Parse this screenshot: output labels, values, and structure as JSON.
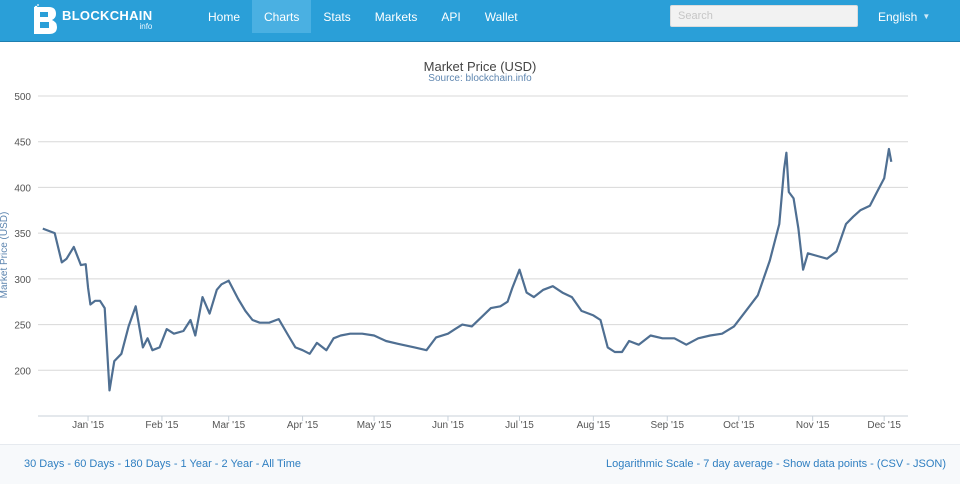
{
  "header": {
    "logo_title": "BLOCKCHAIN",
    "logo_sub": "info",
    "nav": [
      "Home",
      "Charts",
      "Stats",
      "Markets",
      "API",
      "Wallet"
    ],
    "active_nav": "Charts",
    "search_placeholder": "Search",
    "language": "English",
    "colors": {
      "bar": "#2a9fd8",
      "active": "#4ab0e2"
    }
  },
  "chart_data": {
    "type": "line",
    "title": "Market Price (USD)",
    "subtitle": "Source: blockchain.info",
    "ylabel": "Market Price (USD)",
    "xlabel": "",
    "ylim": [
      150,
      500
    ],
    "yticks": [
      200,
      250,
      300,
      350,
      400,
      450,
      500
    ],
    "x_ticks": [
      "Jan '15",
      "Feb '15",
      "Mar '15",
      "Apr '15",
      "May '15",
      "Jun '15",
      "Jul '15",
      "Aug '15",
      "Sep '15",
      "Oct '15",
      "Nov '15",
      "Dec '15"
    ],
    "grid": true,
    "line_color": "#4f6f92",
    "series": [
      {
        "x": [
          "2014-12-27",
          "2015-01-01",
          "2015-01-04",
          "2015-01-06",
          "2015-01-09",
          "2015-01-12",
          "2015-01-14",
          "2015-01-15",
          "2015-01-16",
          "2015-01-18",
          "2015-01-20",
          "2015-01-22",
          "2015-01-24",
          "2015-01-26",
          "2015-01-29",
          "2015-02-01",
          "2015-02-04",
          "2015-02-07",
          "2015-02-09",
          "2015-02-11",
          "2015-02-14",
          "2015-02-17",
          "2015-02-20",
          "2015-02-24",
          "2015-02-27",
          "2015-03-01",
          "2015-03-04",
          "2015-03-07",
          "2015-03-10",
          "2015-03-12",
          "2015-03-15",
          "2015-03-19",
          "2015-03-22",
          "2015-03-25",
          "2015-03-28",
          "2015-04-01",
          "2015-04-05",
          "2015-04-09",
          "2015-04-12",
          "2015-04-15",
          "2015-04-18",
          "2015-04-21",
          "2015-04-25",
          "2015-04-28",
          "2015-05-01",
          "2015-05-05",
          "2015-05-10",
          "2015-05-15",
          "2015-05-20",
          "2015-05-25",
          "2015-06-01",
          "2015-06-06",
          "2015-06-10",
          "2015-06-15",
          "2015-06-18",
          "2015-06-21",
          "2015-06-25",
          "2015-06-29",
          "2015-07-03",
          "2015-07-07",
          "2015-07-10",
          "2015-07-12",
          "2015-07-15",
          "2015-07-18",
          "2015-07-21",
          "2015-07-25",
          "2015-07-29",
          "2015-08-02",
          "2015-08-06",
          "2015-08-10",
          "2015-08-15",
          "2015-08-18",
          "2015-08-21",
          "2015-08-24",
          "2015-08-27",
          "2015-08-30",
          "2015-09-03",
          "2015-09-08",
          "2015-09-13",
          "2015-09-18",
          "2015-09-23",
          "2015-09-28",
          "2015-10-03",
          "2015-10-08",
          "2015-10-13",
          "2015-10-18",
          "2015-10-23",
          "2015-10-28",
          "2015-11-01",
          "2015-11-03",
          "2015-11-04",
          "2015-11-05",
          "2015-11-07",
          "2015-11-09",
          "2015-11-11",
          "2015-11-13",
          "2015-11-17",
          "2015-11-21",
          "2015-11-25",
          "2015-11-29",
          "2015-12-02",
          "2015-12-05",
          "2015-12-09",
          "2015-12-12",
          "2015-12-15",
          "2015-12-17",
          "2015-12-18"
        ],
        "y": [
          355,
          350,
          318,
          322,
          335,
          315,
          316,
          290,
          272,
          276,
          276,
          268,
          178,
          210,
          218,
          248,
          270,
          225,
          235,
          222,
          225,
          245,
          240,
          243,
          255,
          238,
          280,
          262,
          288,
          294,
          298,
          278,
          265,
          255,
          252,
          252,
          256,
          238,
          225,
          222,
          218,
          230,
          222,
          235,
          238,
          240,
          240,
          238,
          232,
          229,
          225,
          222,
          236,
          240,
          245,
          250,
          248,
          258,
          268,
          270,
          275,
          290,
          310,
          285,
          280,
          288,
          292,
          285,
          280,
          265,
          260,
          255,
          225,
          220,
          220,
          232,
          228,
          238,
          235,
          235,
          228,
          235,
          238,
          240,
          248,
          265,
          282,
          320,
          360,
          420,
          438,
          395,
          388,
          355,
          310,
          328,
          325,
          322,
          330,
          360,
          368,
          375,
          380,
          395,
          410,
          442,
          428
        ]
      }
    ]
  },
  "footer": {
    "ranges": [
      "30 Days",
      "60 Days",
      "180 Days",
      "1 Year",
      "2 Year",
      "All Time"
    ],
    "options": [
      "Logarithmic Scale",
      "7 day average",
      "Show data points"
    ],
    "downloads": [
      "CSV",
      "JSON"
    ]
  }
}
